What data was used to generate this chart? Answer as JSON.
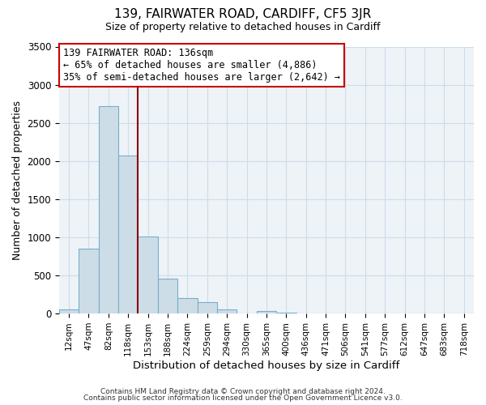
{
  "title": "139, FAIRWATER ROAD, CARDIFF, CF5 3JR",
  "subtitle": "Size of property relative to detached houses in Cardiff",
  "xlabel": "Distribution of detached houses by size in Cardiff",
  "ylabel": "Number of detached properties",
  "bar_labels": [
    "12sqm",
    "47sqm",
    "82sqm",
    "118sqm",
    "153sqm",
    "188sqm",
    "224sqm",
    "259sqm",
    "294sqm",
    "330sqm",
    "365sqm",
    "400sqm",
    "436sqm",
    "471sqm",
    "506sqm",
    "541sqm",
    "577sqm",
    "612sqm",
    "647sqm",
    "683sqm",
    "718sqm"
  ],
  "bar_values": [
    55,
    855,
    2720,
    2070,
    1010,
    455,
    205,
    145,
    55,
    0,
    30,
    15,
    0,
    0,
    0,
    0,
    0,
    0,
    0,
    0,
    0
  ],
  "bar_color": "#ccdde8",
  "bar_edge_color": "#7aadca",
  "property_line_color": "#8b0000",
  "annotation_line1": "139 FAIRWATER ROAD: 136sqm",
  "annotation_line2": "← 65% of detached houses are smaller (4,886)",
  "annotation_line3": "35% of semi-detached houses are larger (2,642) →",
  "annotation_box_facecolor": "#ffffff",
  "annotation_box_edgecolor": "#cc0000",
  "ylim": [
    0,
    3500
  ],
  "yticks": [
    0,
    500,
    1000,
    1500,
    2000,
    2500,
    3000,
    3500
  ],
  "footer1": "Contains HM Land Registry data © Crown copyright and database right 2024.",
  "footer2": "Contains public sector information licensed under the Open Government Licence v3.0.",
  "grid_color": "#ccdde8",
  "bg_color": "#ffffff",
  "plot_bg_color": "#eef3f8"
}
